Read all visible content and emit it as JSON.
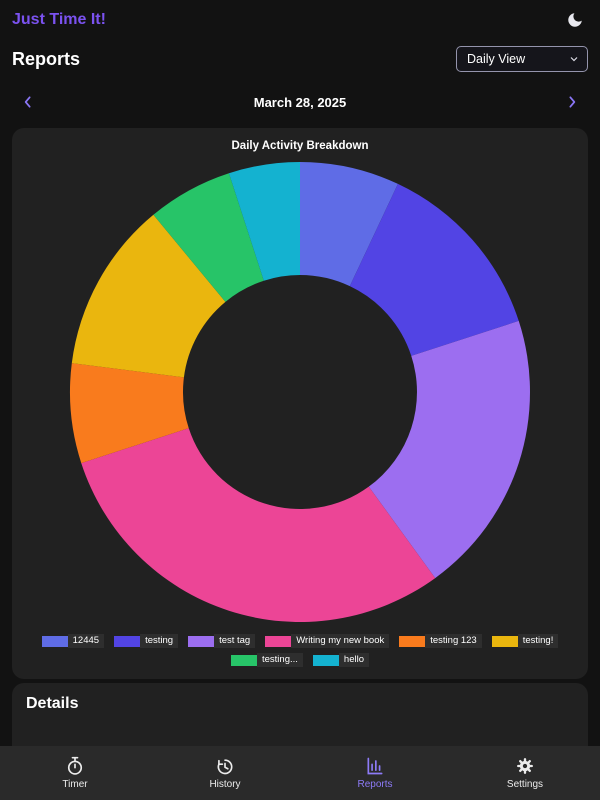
{
  "app": {
    "title": "Just Time It!"
  },
  "header": {
    "page_title": "Reports",
    "view_selector": {
      "value": "Daily View",
      "options": [
        "Daily View"
      ]
    }
  },
  "date_nav": {
    "date": "March 28, 2025"
  },
  "chart_data": {
    "type": "pie",
    "variant": "donut",
    "title": "Daily Activity Breakdown",
    "legend_position": "bottom",
    "legend_split": 6,
    "segments": [
      {
        "label": "12445",
        "percent": 7,
        "color": "#5f6ce6"
      },
      {
        "label": "testing",
        "percent": 13,
        "color": "#5244e4"
      },
      {
        "label": "test tag",
        "percent": 20,
        "color": "#9c6ef0"
      },
      {
        "label": "Writing my new book",
        "percent": 30,
        "color": "#ec4596"
      },
      {
        "label": "testing 123",
        "percent": 7,
        "color": "#f97b1d"
      },
      {
        "label": "testing!",
        "percent": 12,
        "color": "#eab60e"
      },
      {
        "label": "testing...",
        "percent": 6,
        "color": "#27c468"
      },
      {
        "label": "hello",
        "percent": 5,
        "color": "#14b2d0"
      }
    ]
  },
  "details": {
    "title": "Details"
  },
  "bottom_nav": {
    "items": [
      {
        "label": "Timer",
        "icon": "stopwatch-icon",
        "active": false
      },
      {
        "label": "History",
        "icon": "history-icon",
        "active": false
      },
      {
        "label": "Reports",
        "icon": "bar-chart-icon",
        "active": true
      },
      {
        "label": "Settings",
        "icon": "gear-icon",
        "active": false
      }
    ]
  },
  "colors": {
    "accent": "#7b52f0",
    "nav_active": "#8d7bf7",
    "page_bg": "#121212",
    "card_bg": "#212121",
    "bottom_nav_bg": "#2a2a2a"
  }
}
